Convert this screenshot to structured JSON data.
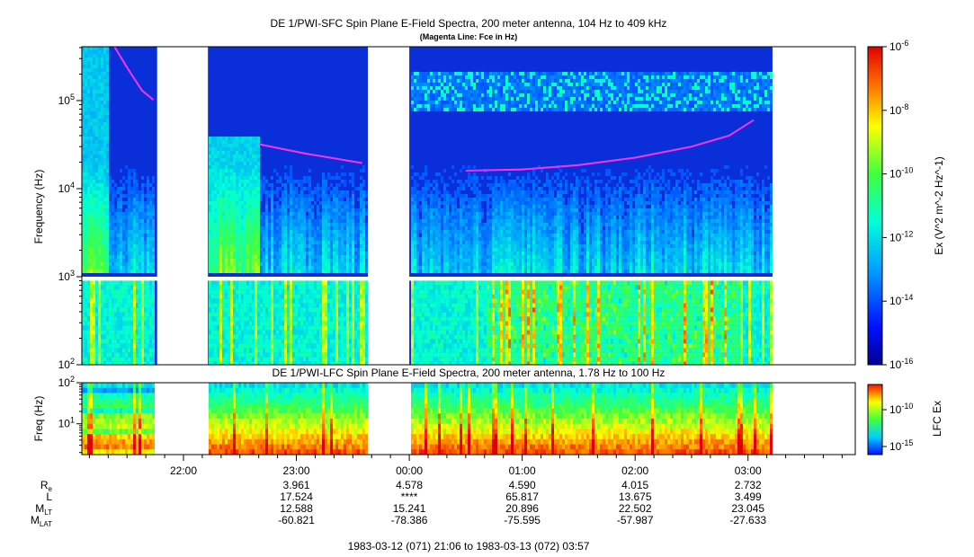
{
  "title": "DE 1/PWI-SFC  Spin Plane E-Field Spectra, 200 meter antenna, 104 Hz to 409 kHz",
  "subtitle": "(Magenta Line: Fce in Hz)",
  "colors": {
    "fce_line": "#ff33ff",
    "gap": "#ffffff",
    "background_spectrum": "#0a2fd8"
  },
  "chart_data": [
    {
      "type": "heatmap",
      "name": "SFC",
      "title": "DE 1/PWI-SFC  Spin Plane E-Field Spectra, 200 meter antenna, 104 Hz to 409 kHz",
      "subtitle": "(Magenta Line: Fce in Hz)",
      "ylabel": "Frequency (Hz)",
      "yscale": "log",
      "ylim": [
        100,
        409000
      ],
      "yticks": [
        "10^2",
        "10^3",
        "10^4",
        "10^5"
      ],
      "colorbar_label": "Ex (V^2 m^-2 Hz^-1)",
      "colorbar_scale": "log",
      "colorbar_range": [
        "1e-16",
        "1e-6"
      ],
      "colorbar_ticks": [
        "10^-6",
        "10^-8",
        "10^-10",
        "10^-12",
        "10^-14",
        "10^-16"
      ],
      "data_gaps_utc": [
        [
          "21:46",
          "22:13"
        ],
        [
          "23:38",
          "00:00"
        ]
      ],
      "fce_line_hz": [
        {
          "t": "21:23",
          "f": 420000
        },
        {
          "t": "21:31",
          "f": 220000
        },
        {
          "t": "21:38",
          "f": 130000
        },
        {
          "t": "21:44",
          "f": 102000
        },
        {
          "t": "22:13",
          "f": 45000
        },
        {
          "t": "22:40",
          "f": 32000
        },
        {
          "t": "23:05",
          "f": 25000
        },
        {
          "t": "23:35",
          "f": 19500
        },
        {
          "t": "00:00",
          "f": 17000
        },
        {
          "t": "00:30",
          "f": 16000
        },
        {
          "t": "01:00",
          "f": 16500
        },
        {
          "t": "01:30",
          "f": 18500
        },
        {
          "t": "02:00",
          "f": 22500
        },
        {
          "t": "02:30",
          "f": 30000
        },
        {
          "t": "02:50",
          "f": 40000
        },
        {
          "t": "03:03",
          "f": 60000
        }
      ]
    },
    {
      "type": "heatmap",
      "name": "LFC",
      "title": "DE 1/PWI-LFC  Spin Plane E-Field Spectra, 200 meter antenna, 1.78 Hz to 100 Hz",
      "ylabel": "Freq (Hz)",
      "yscale": "log",
      "ylim": [
        1.78,
        100
      ],
      "yticks": [
        "10^1",
        "10^2"
      ],
      "colorbar_label": "LFC Ex",
      "colorbar_ticks": [
        "10^-10",
        "10^-15"
      ],
      "data_gaps_utc": [
        [
          "21:46",
          "22:13"
        ],
        [
          "23:38",
          "00:00"
        ]
      ]
    }
  ],
  "time_axis": {
    "ticks": [
      "22:00",
      "23:00",
      "00:00",
      "01:00",
      "02:00",
      "03:00"
    ],
    "range_label": "1983-03-12 (071) 21:06 to 1983-03-13 (072) 03:57"
  },
  "ephemeris": {
    "rows": [
      {
        "label": "R",
        "sub": "e",
        "values": [
          "",
          "3.961",
          "4.578",
          "4.590",
          "4.015",
          "2.732"
        ]
      },
      {
        "label": "L",
        "sub": "",
        "values": [
          "",
          "17.524",
          "****",
          "65.817",
          "13.675",
          "3.499"
        ]
      },
      {
        "label": "M",
        "sub": "LT",
        "values": [
          "",
          "12.588",
          "15.241",
          "20.896",
          "22.502",
          "23.045"
        ]
      },
      {
        "label": "M",
        "sub": "LAT",
        "values": [
          "",
          "-60.821",
          "-78.386",
          "-75.595",
          "-57.987",
          "-27.633"
        ]
      }
    ]
  }
}
